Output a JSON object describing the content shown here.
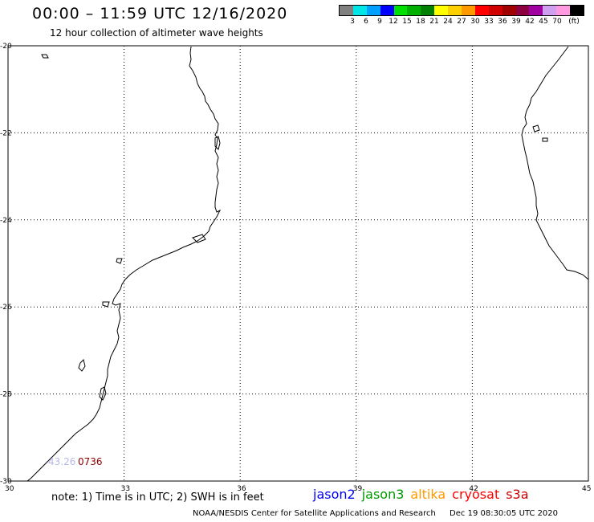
{
  "title": "00:00 – 11:59 UTC 12/16/2020",
  "subtitle": "12 hour collection of altimeter wave heights",
  "legend": {
    "colors": [
      "#808080",
      "#00e5e5",
      "#00a0ff",
      "#0000ff",
      "#00e000",
      "#00b000",
      "#008000",
      "#ffff00",
      "#ffd000",
      "#ff9900",
      "#ff0000",
      "#d00000",
      "#a00000",
      "#8b0040",
      "#a000a0",
      "#d0a0f0",
      "#ff99e0",
      "#000000"
    ],
    "labels": [
      "3",
      "6",
      "9",
      "12",
      "15",
      "18",
      "21",
      "24",
      "27",
      "30",
      "33",
      "36",
      "39",
      "42",
      "45",
      "70",
      "(ft)"
    ]
  },
  "map": {
    "lat_labels": [
      "-20",
      "-22",
      "-24",
      "-26",
      "-28",
      "-30"
    ],
    "lon_labels": [
      "30",
      "33",
      "36",
      "39",
      "42",
      "45"
    ],
    "lat_range": [
      -30,
      -20
    ],
    "lon_range": [
      30,
      45
    ],
    "coastline_color": "#000000",
    "grid_style": "dotted"
  },
  "observations": [
    {
      "label": "43.26",
      "color": "#b8b8e8"
    },
    {
      "label": "0736",
      "color": "#8b0000"
    }
  ],
  "note": "note: 1) Time is in UTC; 2) SWH is in feet",
  "satellites": [
    {
      "name": "jason2",
      "color": "#0000ff"
    },
    {
      "name": "jason3",
      "color": "#009900"
    },
    {
      "name": "altika",
      "color": "#ff9900"
    },
    {
      "name": "cryosat",
      "color": "#ff0000"
    },
    {
      "name": "s3a",
      "color": "#cc0000"
    }
  ],
  "footer": {
    "agency": "NOAA/NESDIS Center for Satellite Applications and Research",
    "timestamp": "Dec 19 08:30:05 UTC 2020"
  }
}
